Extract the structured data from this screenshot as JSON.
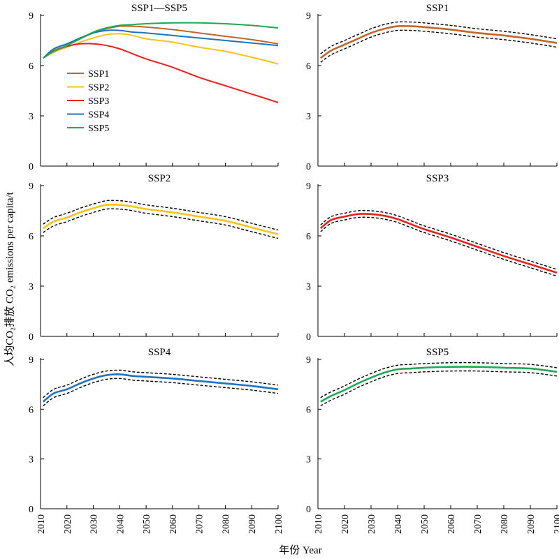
{
  "chart_data": {
    "type": "line",
    "y_axis_title": "人均CO₂排放 CO₂ emissions per capita/t",
    "x_axis_title": "年份  Year",
    "x_ticks": [
      2010,
      2020,
      2030,
      2040,
      2050,
      2060,
      2070,
      2080,
      2090,
      2100
    ],
    "y_ticks": [
      0,
      3,
      6,
      9
    ],
    "xlim": [
      2010,
      2100
    ],
    "ylim": [
      0,
      9
    ],
    "grid": false,
    "colors": {
      "SSP1": "#c0652b",
      "SSP2": "#f7c31c",
      "SSP3": "#e8211d",
      "SSP4": "#1f73bc",
      "SSP5": "#1fa856"
    },
    "panels": [
      {
        "title": "SSP1—SSP5",
        "legend": [
          "SSP1",
          "SSP2",
          "SSP3",
          "SSP4",
          "SSP5"
        ],
        "legend_position": "left",
        "series": [
          {
            "name": "SSP1",
            "x": [
              2011,
              2015,
              2020,
              2025,
              2030,
              2035,
              2040,
              2045,
              2050,
              2060,
              2070,
              2080,
              2090,
              2100
            ],
            "y": [
              6.45,
              6.9,
              7.2,
              7.6,
              7.95,
              8.2,
              8.35,
              8.35,
              8.3,
              8.15,
              7.95,
              7.75,
              7.55,
              7.3
            ]
          },
          {
            "name": "SSP2",
            "x": [
              2011,
              2015,
              2020,
              2025,
              2030,
              2035,
              2040,
              2045,
              2050,
              2060,
              2070,
              2080,
              2090,
              2100
            ],
            "y": [
              6.45,
              6.8,
              7.1,
              7.4,
              7.65,
              7.85,
              7.9,
              7.8,
              7.6,
              7.4,
              7.1,
              6.85,
              6.5,
              6.1
            ]
          },
          {
            "name": "SSP3",
            "x": [
              2011,
              2015,
              2020,
              2025,
              2030,
              2035,
              2040,
              2045,
              2050,
              2060,
              2070,
              2080,
              2090,
              2100
            ],
            "y": [
              6.45,
              6.85,
              7.15,
              7.3,
              7.3,
              7.2,
              7.0,
              6.7,
              6.4,
              5.9,
              5.3,
              4.8,
              4.3,
              3.8
            ]
          },
          {
            "name": "SSP4",
            "x": [
              2011,
              2015,
              2020,
              2025,
              2030,
              2035,
              2040,
              2045,
              2050,
              2060,
              2070,
              2080,
              2090,
              2100
            ],
            "y": [
              6.45,
              7.0,
              7.3,
              7.65,
              7.95,
              8.1,
              8.1,
              8.0,
              7.95,
              7.8,
              7.65,
              7.5,
              7.35,
              7.2
            ]
          },
          {
            "name": "SSP5",
            "x": [
              2011,
              2015,
              2020,
              2025,
              2030,
              2035,
              2040,
              2045,
              2050,
              2060,
              2070,
              2080,
              2090,
              2100
            ],
            "y": [
              6.45,
              6.85,
              7.2,
              7.6,
              8.0,
              8.25,
              8.4,
              8.45,
              8.5,
              8.55,
              8.55,
              8.5,
              8.4,
              8.25
            ]
          }
        ]
      },
      {
        "title": "SSP1",
        "band": 0.25,
        "series": [
          {
            "name": "SSP1",
            "x": [
              2011,
              2015,
              2020,
              2025,
              2030,
              2035,
              2040,
              2045,
              2050,
              2060,
              2070,
              2080,
              2090,
              2100
            ],
            "y": [
              6.45,
              6.9,
              7.25,
              7.6,
              7.95,
              8.2,
              8.35,
              8.35,
              8.3,
              8.15,
              7.95,
              7.8,
              7.6,
              7.35
            ]
          }
        ]
      },
      {
        "title": "SSP2",
        "band": 0.25,
        "series": [
          {
            "name": "SSP2",
            "x": [
              2011,
              2015,
              2020,
              2025,
              2030,
              2035,
              2040,
              2045,
              2050,
              2060,
              2070,
              2080,
              2090,
              2100
            ],
            "y": [
              6.45,
              6.85,
              7.1,
              7.4,
              7.65,
              7.85,
              7.85,
              7.75,
              7.6,
              7.4,
              7.15,
              6.9,
              6.5,
              6.1
            ]
          }
        ]
      },
      {
        "title": "SSP3",
        "band": 0.2,
        "series": [
          {
            "name": "SSP3",
            "x": [
              2011,
              2015,
              2020,
              2025,
              2030,
              2035,
              2040,
              2045,
              2050,
              2060,
              2070,
              2080,
              2090,
              2100
            ],
            "y": [
              6.45,
              6.95,
              7.15,
              7.3,
              7.3,
              7.2,
              7.0,
              6.7,
              6.4,
              5.9,
              5.35,
              4.8,
              4.3,
              3.8
            ]
          }
        ]
      },
      {
        "title": "SSP4",
        "band": 0.25,
        "series": [
          {
            "name": "SSP4",
            "x": [
              2011,
              2015,
              2020,
              2025,
              2030,
              2035,
              2040,
              2045,
              2050,
              2060,
              2070,
              2080,
              2090,
              2100
            ],
            "y": [
              6.45,
              6.95,
              7.2,
              7.55,
              7.85,
              8.05,
              8.1,
              8.0,
              7.95,
              7.85,
              7.7,
              7.55,
              7.4,
              7.2
            ]
          }
        ]
      },
      {
        "title": "SSP5",
        "band": 0.25,
        "series": [
          {
            "name": "SSP5",
            "x": [
              2011,
              2015,
              2020,
              2025,
              2030,
              2035,
              2040,
              2045,
              2050,
              2060,
              2070,
              2080,
              2090,
              2100
            ],
            "y": [
              6.45,
              6.8,
              7.15,
              7.55,
              7.9,
              8.2,
              8.4,
              8.45,
              8.5,
              8.55,
              8.55,
              8.5,
              8.45,
              8.25
            ]
          }
        ]
      }
    ]
  }
}
